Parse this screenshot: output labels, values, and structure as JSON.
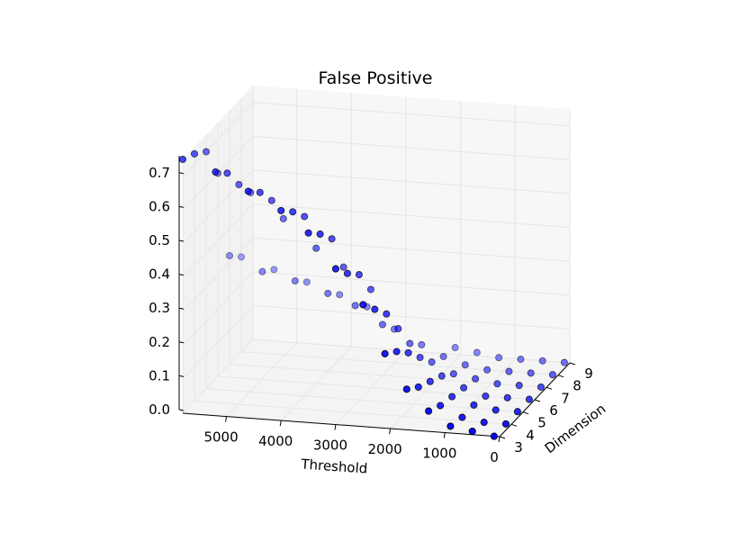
{
  "chart_data": {
    "type": "scatter",
    "projection": "3d",
    "title": "False Positive",
    "xlabel": "Threshold",
    "ylabel": "Dimension",
    "zlabel": "",
    "x_ticks": [
      "5000",
      "4000",
      "3000",
      "2000",
      "1000",
      "0"
    ],
    "y_ticks": [
      "3",
      "4",
      "5",
      "6",
      "7",
      "8",
      "9"
    ],
    "z_ticks": [
      "0.0",
      "0.1",
      "0.2",
      "0.3",
      "0.4",
      "0.5",
      "0.6",
      "0.7"
    ],
    "xlim": [
      0,
      5800
    ],
    "ylim": [
      3,
      9
    ],
    "zlim": [
      0,
      0.75
    ],
    "grid": true,
    "marker_color": "#0000ff",
    "marker_edge": "#000000",
    "pane_color": "#f2f2f2",
    "series": [
      {
        "points": [
          [
            5800,
            3,
            0.75
          ],
          [
            5800,
            4,
            0.73
          ],
          [
            5800,
            5,
            0.7
          ],
          [
            5800,
            6,
            0.6
          ],
          [
            5800,
            7,
            0.32
          ],
          [
            5800,
            8,
            0.28
          ],
          [
            5200,
            3,
            0.72
          ],
          [
            5200,
            4,
            0.68
          ],
          [
            5200,
            5,
            0.61
          ],
          [
            5200,
            6,
            0.55
          ],
          [
            5200,
            7,
            0.28
          ],
          [
            5200,
            8,
            0.25
          ],
          [
            4600,
            3,
            0.67
          ],
          [
            4600,
            4,
            0.63
          ],
          [
            4600,
            5,
            0.57
          ],
          [
            4600,
            6,
            0.48
          ],
          [
            4600,
            7,
            0.26
          ],
          [
            4600,
            8,
            0.22
          ],
          [
            4000,
            3,
            0.62
          ],
          [
            4000,
            4,
            0.58
          ],
          [
            4000,
            5,
            0.53
          ],
          [
            4000,
            6,
            0.4
          ],
          [
            4000,
            7,
            0.23
          ],
          [
            4000,
            8,
            0.19
          ],
          [
            3500,
            3,
            0.56
          ],
          [
            3500,
            4,
            0.52
          ],
          [
            3500,
            5,
            0.47
          ],
          [
            3500,
            6,
            0.35
          ],
          [
            3500,
            7,
            0.2
          ],
          [
            3500,
            8,
            0.16
          ],
          [
            3000,
            3,
            0.46
          ],
          [
            3000,
            4,
            0.41
          ],
          [
            3000,
            5,
            0.37
          ],
          [
            3000,
            6,
            0.29
          ],
          [
            3000,
            7,
            0.15
          ],
          [
            3000,
            8,
            0.1
          ],
          [
            2500,
            3,
            0.36
          ],
          [
            2500,
            4,
            0.31
          ],
          [
            2500,
            5,
            0.26
          ],
          [
            2500,
            6,
            0.18
          ],
          [
            2500,
            7,
            0.1
          ],
          [
            2500,
            8,
            0.06
          ],
          [
            2100,
            3,
            0.22
          ],
          [
            2100,
            4,
            0.19
          ],
          [
            2100,
            5,
            0.15
          ],
          [
            2100,
            6,
            0.1
          ],
          [
            2100,
            7,
            0.05
          ],
          [
            2100,
            8,
            0.03
          ],
          [
            2100,
            9,
            0.02
          ],
          [
            1700,
            3,
            0.12
          ],
          [
            1700,
            4,
            0.09
          ],
          [
            1700,
            5,
            0.07
          ],
          [
            1700,
            6,
            0.05
          ],
          [
            1700,
            7,
            0.02
          ],
          [
            1700,
            8,
            0.01
          ],
          [
            1700,
            9,
            0.01
          ],
          [
            1300,
            3,
            0.06
          ],
          [
            1300,
            4,
            0.04
          ],
          [
            1300,
            5,
            0.03
          ],
          [
            1300,
            6,
            0.02
          ],
          [
            1300,
            7,
            0.01
          ],
          [
            1300,
            8,
            0.0
          ],
          [
            1300,
            9,
            0.0
          ],
          [
            900,
            3,
            0.02
          ],
          [
            900,
            4,
            0.01
          ],
          [
            900,
            5,
            0.01
          ],
          [
            900,
            6,
            0.0
          ],
          [
            900,
            7,
            0.0
          ],
          [
            900,
            8,
            0.0
          ],
          [
            900,
            9,
            0.0
          ],
          [
            500,
            3,
            0.01
          ],
          [
            500,
            4,
            0.0
          ],
          [
            500,
            5,
            0.0
          ],
          [
            500,
            6,
            0.0
          ],
          [
            500,
            7,
            0.0
          ],
          [
            500,
            8,
            0.0
          ],
          [
            500,
            9,
            0.0
          ],
          [
            100,
            3,
            0.0
          ],
          [
            100,
            4,
            0.0
          ],
          [
            100,
            5,
            0.0
          ],
          [
            100,
            6,
            0.0
          ],
          [
            100,
            7,
            0.0
          ],
          [
            100,
            8,
            0.0
          ],
          [
            100,
            9,
            0.0
          ]
        ]
      }
    ]
  }
}
